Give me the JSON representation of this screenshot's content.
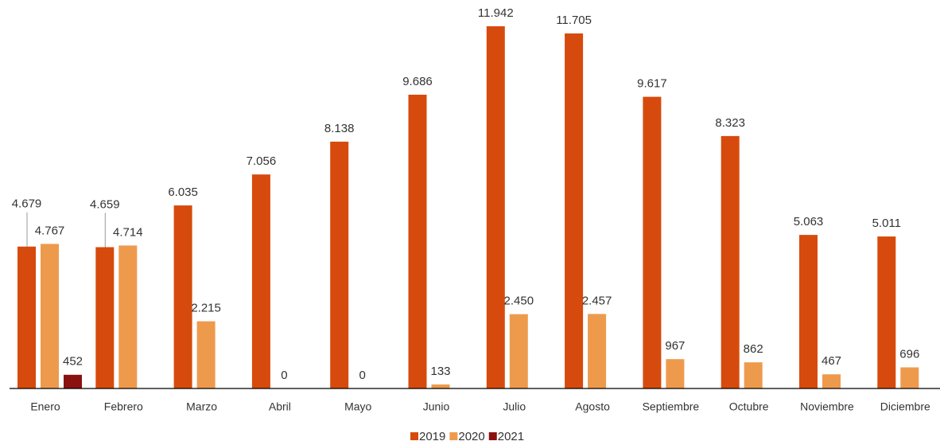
{
  "chart_data": {
    "type": "bar",
    "categories": [
      "Enero",
      "Febrero",
      "Marzo",
      "Abril",
      "Mayo",
      "Junio",
      "Julio",
      "Agosto",
      "Septiembre",
      "Octubre",
      "Noviembre",
      "Diciembre"
    ],
    "series": [
      {
        "name": "2019",
        "color": "#d64b0d",
        "values": [
          4679,
          4659,
          6035,
          7056,
          8138,
          9686,
          11942,
          11705,
          9617,
          8323,
          5063,
          5011
        ],
        "value_labels": [
          "4.679",
          "4.659",
          "6.035",
          "7.056",
          "8.138",
          "9.686",
          "11.942",
          "11.705",
          "9.617",
          "8.323",
          "5.063",
          "5.011"
        ]
      },
      {
        "name": "2020",
        "color": "#ee9a4d",
        "values": [
          4767,
          4714,
          2215,
          0,
          0,
          133,
          2450,
          2457,
          967,
          862,
          467,
          696
        ],
        "value_labels": [
          "4.767",
          "4.714",
          "2.215",
          "0",
          "0",
          "133",
          "2.450",
          "2.457",
          "967",
          "862",
          "467",
          "696"
        ]
      },
      {
        "name": "2021",
        "color": "#8b1111",
        "values": [
          452,
          null,
          null,
          null,
          null,
          null,
          null,
          null,
          null,
          null,
          null,
          null
        ],
        "value_labels": [
          "452",
          null,
          null,
          null,
          null,
          null,
          null,
          null,
          null,
          null,
          null,
          null
        ]
      }
    ],
    "legend": "bottom"
  }
}
